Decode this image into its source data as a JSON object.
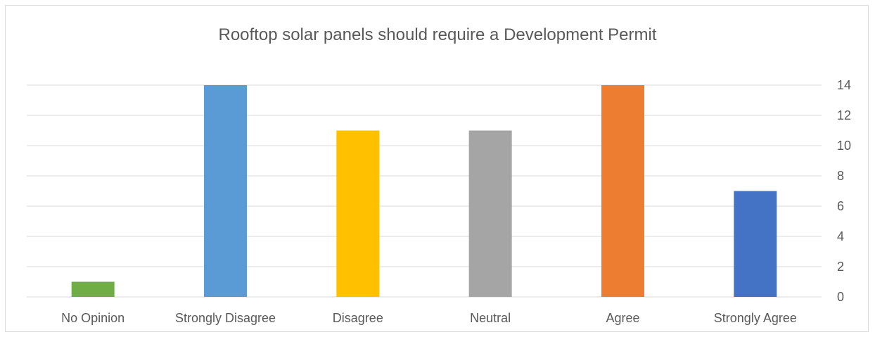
{
  "chart_data": {
    "type": "bar",
    "title": "Rooftop solar panels should require a Development Permit",
    "xlabel": "",
    "ylabel": "",
    "categories": [
      "No Opinion",
      "Strongly Disagree",
      "Disagree",
      "Neutral",
      "Agree",
      "Strongly Agree"
    ],
    "values": [
      1,
      14,
      11,
      11,
      14,
      7
    ],
    "colors": [
      "#70ad47",
      "#5b9bd5",
      "#ffc000",
      "#a5a5a5",
      "#ed7d31",
      "#4472c4"
    ],
    "ylim": [
      0,
      14
    ],
    "yticks": [
      0,
      2,
      4,
      6,
      8,
      10,
      12,
      14
    ],
    "y_axis_side": "right",
    "grid": true,
    "legend": "none"
  }
}
